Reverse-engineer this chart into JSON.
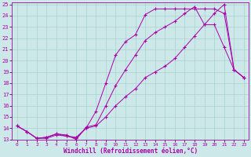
{
  "xlabel": "Windchill (Refroidissement éolien,°C)",
  "background_color": "#cce8e8",
  "grid_color": "#aad0d0",
  "line_color": "#aa00aa",
  "xlim": [
    -0.5,
    23.5
  ],
  "ylim": [
    13,
    25.2
  ],
  "yticks": [
    13,
    14,
    15,
    16,
    17,
    18,
    19,
    20,
    21,
    22,
    23,
    24,
    25
  ],
  "xticks": [
    0,
    1,
    2,
    3,
    4,
    5,
    6,
    7,
    8,
    9,
    10,
    11,
    12,
    13,
    14,
    15,
    16,
    17,
    18,
    19,
    20,
    21,
    22,
    23
  ],
  "curve1_x": [
    0,
    1,
    2,
    3,
    4,
    5,
    6,
    7,
    8,
    9,
    10,
    11,
    12,
    13,
    14,
    15,
    16,
    17,
    18,
    19,
    20,
    21,
    22,
    23
  ],
  "curve1_y": [
    14.2,
    13.7,
    13.1,
    13.1,
    13.4,
    13.3,
    13.1,
    14.0,
    15.5,
    18.0,
    20.5,
    21.7,
    22.3,
    24.1,
    24.6,
    24.6,
    24.6,
    24.6,
    24.6,
    24.6,
    24.6,
    24.2,
    19.2,
    18.5
  ],
  "curve2_x": [
    0,
    1,
    2,
    3,
    4,
    5,
    6,
    7,
    8,
    9,
    10,
    11,
    12,
    13,
    14,
    15,
    16,
    17,
    18,
    19,
    20,
    21,
    22,
    23
  ],
  "curve2_y": [
    14.2,
    13.7,
    13.1,
    13.2,
    13.5,
    13.4,
    13.0,
    14.1,
    14.3,
    16.0,
    17.8,
    19.2,
    20.5,
    21.8,
    22.5,
    23.0,
    23.5,
    24.2,
    24.8,
    23.2,
    23.2,
    21.2,
    19.2,
    18.5
  ],
  "curve3_x": [
    0,
    1,
    2,
    3,
    4,
    5,
    6,
    7,
    8,
    9,
    10,
    11,
    12,
    13,
    14,
    15,
    16,
    17,
    18,
    19,
    20,
    21,
    22,
    23
  ],
  "curve3_y": [
    14.2,
    13.7,
    13.1,
    13.2,
    13.5,
    13.3,
    13.2,
    14.0,
    14.2,
    15.0,
    16.0,
    16.8,
    17.5,
    18.5,
    19.0,
    19.5,
    20.2,
    21.2,
    22.2,
    23.2,
    24.2,
    25.0,
    19.2,
    18.5
  ]
}
